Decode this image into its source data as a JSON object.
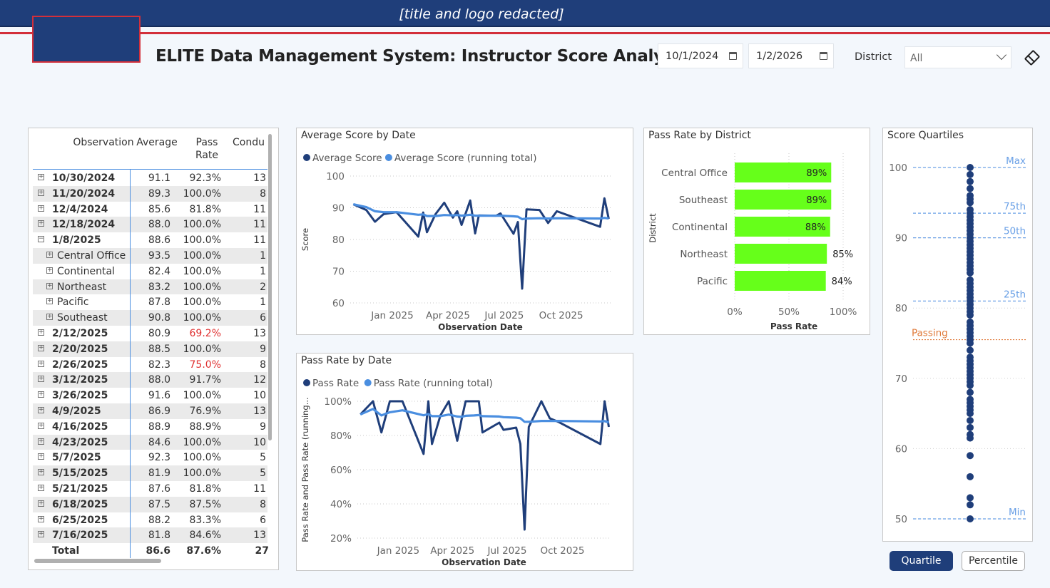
{
  "header": {
    "banner_text": "[title and logo redacted]",
    "page_title": "ELITE Data Management System: Instructor Score Analysis"
  },
  "filters": {
    "start_date": "10/1/2024",
    "end_date": "1/2/2026",
    "district_label": "District",
    "district_value": "All"
  },
  "table": {
    "headers": [
      "Observation",
      "Average",
      "Pass\nRate",
      "Condu"
    ],
    "rows": [
      {
        "label": "10/30/2024",
        "avg": "91.1",
        "pass": "92.3%",
        "cond": "13",
        "level": 0,
        "expand": "+"
      },
      {
        "label": "11/20/2024",
        "avg": "89.3",
        "pass": "100.0%",
        "cond": "8",
        "level": 0,
        "expand": "+"
      },
      {
        "label": "12/4/2024",
        "avg": "85.6",
        "pass": "81.8%",
        "cond": "11",
        "level": 0,
        "expand": "+"
      },
      {
        "label": "12/18/2024",
        "avg": "88.0",
        "pass": "100.0%",
        "cond": "11",
        "level": 0,
        "expand": "+"
      },
      {
        "label": "1/8/2025",
        "avg": "88.6",
        "pass": "100.0%",
        "cond": "11",
        "level": 0,
        "expand": "−"
      },
      {
        "label": "Central Office",
        "avg": "93.5",
        "pass": "100.0%",
        "cond": "1",
        "level": 1,
        "expand": "+"
      },
      {
        "label": "Continental",
        "avg": "82.4",
        "pass": "100.0%",
        "cond": "1",
        "level": 1,
        "expand": "+"
      },
      {
        "label": "Northeast",
        "avg": "83.2",
        "pass": "100.0%",
        "cond": "2",
        "level": 1,
        "expand": "+"
      },
      {
        "label": "Pacific",
        "avg": "87.8",
        "pass": "100.0%",
        "cond": "1",
        "level": 1,
        "expand": "+"
      },
      {
        "label": "Southeast",
        "avg": "90.8",
        "pass": "100.0%",
        "cond": "6",
        "level": 1,
        "expand": "+"
      },
      {
        "label": "2/12/2025",
        "avg": "80.9",
        "pass": "69.2%",
        "cond": "13",
        "level": 0,
        "expand": "+",
        "warn": true
      },
      {
        "label": "2/20/2025",
        "avg": "88.5",
        "pass": "100.0%",
        "cond": "9",
        "level": 0,
        "expand": "+"
      },
      {
        "label": "2/26/2025",
        "avg": "82.3",
        "pass": "75.0%",
        "cond": "8",
        "level": 0,
        "expand": "+",
        "warn": true
      },
      {
        "label": "3/12/2025",
        "avg": "88.0",
        "pass": "91.7%",
        "cond": "12",
        "level": 0,
        "expand": "+"
      },
      {
        "label": "3/26/2025",
        "avg": "91.6",
        "pass": "100.0%",
        "cond": "10",
        "level": 0,
        "expand": "+"
      },
      {
        "label": "4/9/2025",
        "avg": "86.9",
        "pass": "76.9%",
        "cond": "13",
        "level": 0,
        "expand": "+"
      },
      {
        "label": "4/16/2025",
        "avg": "88.9",
        "pass": "88.9%",
        "cond": "9",
        "level": 0,
        "expand": "+"
      },
      {
        "label": "4/23/2025",
        "avg": "84.6",
        "pass": "100.0%",
        "cond": "10",
        "level": 0,
        "expand": "+"
      },
      {
        "label": "5/7/2025",
        "avg": "92.3",
        "pass": "100.0%",
        "cond": "5",
        "level": 0,
        "expand": "+"
      },
      {
        "label": "5/15/2025",
        "avg": "81.9",
        "pass": "100.0%",
        "cond": "5",
        "level": 0,
        "expand": "+"
      },
      {
        "label": "5/21/2025",
        "avg": "87.6",
        "pass": "81.8%",
        "cond": "11",
        "level": 0,
        "expand": "+"
      },
      {
        "label": "6/18/2025",
        "avg": "87.5",
        "pass": "87.5%",
        "cond": "8",
        "level": 0,
        "expand": "+"
      },
      {
        "label": "6/25/2025",
        "avg": "88.2",
        "pass": "83.3%",
        "cond": "6",
        "level": 0,
        "expand": "+"
      },
      {
        "label": "7/16/2025",
        "avg": "81.8",
        "pass": "84.6%",
        "cond": "13",
        "level": 0,
        "expand": "+"
      }
    ],
    "total": {
      "label": "Total",
      "avg": "86.6",
      "pass": "87.6%",
      "cond": "27"
    }
  },
  "colors": {
    "series_dark": "#1f3e7a",
    "series_light": "#4a8ee0",
    "bar": "#66ff1a",
    "passing": "#e07a3a",
    "quartile_line": "#6aa0e6"
  },
  "chart_data": [
    {
      "type": "line",
      "title": "Average Score by Date",
      "xlabel": "Observation Date",
      "ylabel": "Score",
      "ylim": [
        60,
        100
      ],
      "yticks": [
        "100",
        "90",
        "80",
        "70",
        "60"
      ],
      "xticks": [
        "Jan 2025",
        "Apr 2025",
        "Jul 2025",
        "Oct 2025"
      ],
      "xtick_dates": [
        "2025-01-01",
        "2025-04-01",
        "2025-07-01",
        "2025-10-01"
      ],
      "x_range": [
        "2024-10-25",
        "2025-12-20"
      ],
      "legend": "top-left",
      "series": [
        {
          "name": "Average Score",
          "color": "#1f3e7a",
          "x": [
            "2024-10-30",
            "2024-11-20",
            "2024-12-04",
            "2024-12-18",
            "2025-01-08",
            "2025-02-12",
            "2025-02-20",
            "2025-02-26",
            "2025-03-12",
            "2025-03-26",
            "2025-04-09",
            "2025-04-16",
            "2025-04-23",
            "2025-05-07",
            "2025-05-15",
            "2025-05-21",
            "2025-06-18",
            "2025-06-25",
            "2025-07-16",
            "2025-07-23",
            "2025-07-30",
            "2025-08-06",
            "2025-08-27",
            "2025-09-10",
            "2025-09-24",
            "2025-12-03",
            "2025-12-10",
            "2025-12-17"
          ],
          "y": [
            91.1,
            89.3,
            85.6,
            88.0,
            88.6,
            80.9,
            88.5,
            82.3,
            88.0,
            91.6,
            86.9,
            88.9,
            84.6,
            92.3,
            81.9,
            87.6,
            87.5,
            88.2,
            81.8,
            85.5,
            64.5,
            89.5,
            89.3,
            85.2,
            88.9,
            84.0,
            93.0,
            86.5
          ]
        },
        {
          "name": "Average Score (running total)",
          "color": "#4a8ee0",
          "x": [
            "2024-10-30",
            "2024-11-20",
            "2024-12-04",
            "2024-12-18",
            "2025-01-08",
            "2025-02-12",
            "2025-02-20",
            "2025-02-26",
            "2025-03-12",
            "2025-03-26",
            "2025-04-09",
            "2025-04-16",
            "2025-04-23",
            "2025-05-07",
            "2025-05-15",
            "2025-05-21",
            "2025-06-18",
            "2025-06-25",
            "2025-07-16",
            "2025-07-23",
            "2025-07-30",
            "2025-08-06",
            "2025-08-27",
            "2025-09-10",
            "2025-09-24",
            "2025-12-03",
            "2025-12-10",
            "2025-12-17"
          ],
          "y": [
            91.1,
            90.2,
            88.9,
            88.6,
            88.6,
            87.8,
            87.9,
            87.4,
            87.4,
            87.7,
            87.6,
            87.7,
            87.5,
            87.8,
            87.5,
            87.5,
            87.5,
            87.5,
            87.3,
            87.2,
            86.4,
            86.6,
            86.7,
            86.6,
            86.7,
            86.6,
            86.8,
            86.6
          ]
        }
      ]
    },
    {
      "type": "line",
      "title": "Pass Rate by Date",
      "xlabel": "Observation Date",
      "ylabel": "Pass Rate and Pass Rate (running...",
      "ylim": [
        20,
        100
      ],
      "yticks": [
        "100%",
        "80%",
        "60%",
        "40%",
        "20%"
      ],
      "xticks": [
        "Jan 2025",
        "Apr 2025",
        "Jul 2025",
        "Oct 2025"
      ],
      "xtick_dates": [
        "2025-01-01",
        "2025-04-01",
        "2025-07-01",
        "2025-10-01"
      ],
      "x_range": [
        "2024-10-25",
        "2025-12-20"
      ],
      "legend": "top-left",
      "series": [
        {
          "name": "Pass Rate",
          "color": "#1f3e7a",
          "x": [
            "2024-10-30",
            "2024-11-20",
            "2024-12-04",
            "2024-12-18",
            "2025-01-08",
            "2025-02-12",
            "2025-02-20",
            "2025-02-26",
            "2025-03-12",
            "2025-03-26",
            "2025-04-09",
            "2025-04-16",
            "2025-04-23",
            "2025-05-07",
            "2025-05-15",
            "2025-05-21",
            "2025-06-18",
            "2025-06-25",
            "2025-07-16",
            "2025-07-23",
            "2025-07-30",
            "2025-08-06",
            "2025-08-27",
            "2025-09-10",
            "2025-09-24",
            "2025-12-03",
            "2025-12-10",
            "2025-12-17"
          ],
          "y": [
            92.3,
            100,
            81.8,
            100,
            100,
            69.2,
            100,
            75.0,
            91.7,
            100,
            76.9,
            88.9,
            100,
            100,
            100,
            81.8,
            87.5,
            83.3,
            84.6,
            75.0,
            25.0,
            85.0,
            100,
            90.0,
            88.0,
            75.0,
            100,
            85.0
          ]
        },
        {
          "name": "Pass Rate (running total)",
          "color": "#4a8ee0",
          "x": [
            "2024-10-30",
            "2024-11-20",
            "2024-12-04",
            "2024-12-18",
            "2025-01-08",
            "2025-02-12",
            "2025-02-20",
            "2025-02-26",
            "2025-03-12",
            "2025-03-26",
            "2025-04-09",
            "2025-04-16",
            "2025-04-23",
            "2025-05-07",
            "2025-05-15",
            "2025-05-21",
            "2025-06-18",
            "2025-06-25",
            "2025-07-16",
            "2025-07-23",
            "2025-07-30",
            "2025-08-06",
            "2025-08-27",
            "2025-09-10",
            "2025-09-24",
            "2025-12-03",
            "2025-12-10",
            "2025-12-17"
          ],
          "y": [
            92.3,
            95.5,
            91.7,
            93.6,
            94.7,
            91.8,
            92.5,
            91.3,
            91.3,
            92.2,
            91.1,
            90.9,
            91.5,
            91.7,
            91.9,
            91.3,
            91.1,
            90.7,
            90.4,
            90.1,
            88.0,
            88.0,
            88.5,
            88.5,
            88.5,
            88.2,
            88.4,
            87.6
          ]
        }
      ]
    },
    {
      "type": "bar",
      "orientation": "horizontal",
      "title": "Pass Rate by District",
      "xlabel": "Pass Rate",
      "ylabel": "District",
      "categories": [
        "Central Office",
        "Southeast",
        "Continental",
        "Northeast",
        "Pacific"
      ],
      "values": [
        89,
        89,
        88,
        85,
        84
      ],
      "value_labels": [
        "89%",
        "89%",
        "88%",
        "85%",
        "84%"
      ],
      "xlim": [
        0,
        100
      ],
      "xticks": [
        "0%",
        "50%",
        "100%"
      ]
    },
    {
      "type": "scatter",
      "title": "Score Quartiles",
      "ylim": [
        50,
        100
      ],
      "yticks": [
        "100",
        "90",
        "80",
        "70",
        "60",
        "50"
      ],
      "reference_lines": [
        {
          "label": "Max",
          "value": 100
        },
        {
          "label": "75th",
          "value": 93.5
        },
        {
          "label": "50th",
          "value": 90.0
        },
        {
          "label": "25th",
          "value": 81.0
        },
        {
          "label": "Min",
          "value": 50.0
        },
        {
          "label": "Passing",
          "value": 75.5
        }
      ],
      "points": [
        100,
        99,
        98,
        97,
        96,
        95.5,
        95,
        94,
        93.5,
        93,
        92.5,
        92,
        91.5,
        91,
        90.5,
        90,
        89.5,
        89,
        88.5,
        88,
        87.5,
        87,
        86.5,
        86,
        85.5,
        85,
        84,
        83.5,
        83,
        82.5,
        82,
        81.5,
        81,
        80.5,
        80,
        79.5,
        79,
        78,
        77.5,
        77,
        76.5,
        76,
        75.5,
        75,
        74,
        73,
        72.5,
        72,
        71.5,
        71,
        70.5,
        70,
        69.5,
        69,
        68,
        67,
        66.5,
        66,
        65.5,
        65,
        64,
        63,
        62,
        61.5,
        59,
        56,
        53,
        52,
        50
      ]
    }
  ],
  "buttons": {
    "quartile": "Quartile",
    "percentile": "Percentile"
  }
}
